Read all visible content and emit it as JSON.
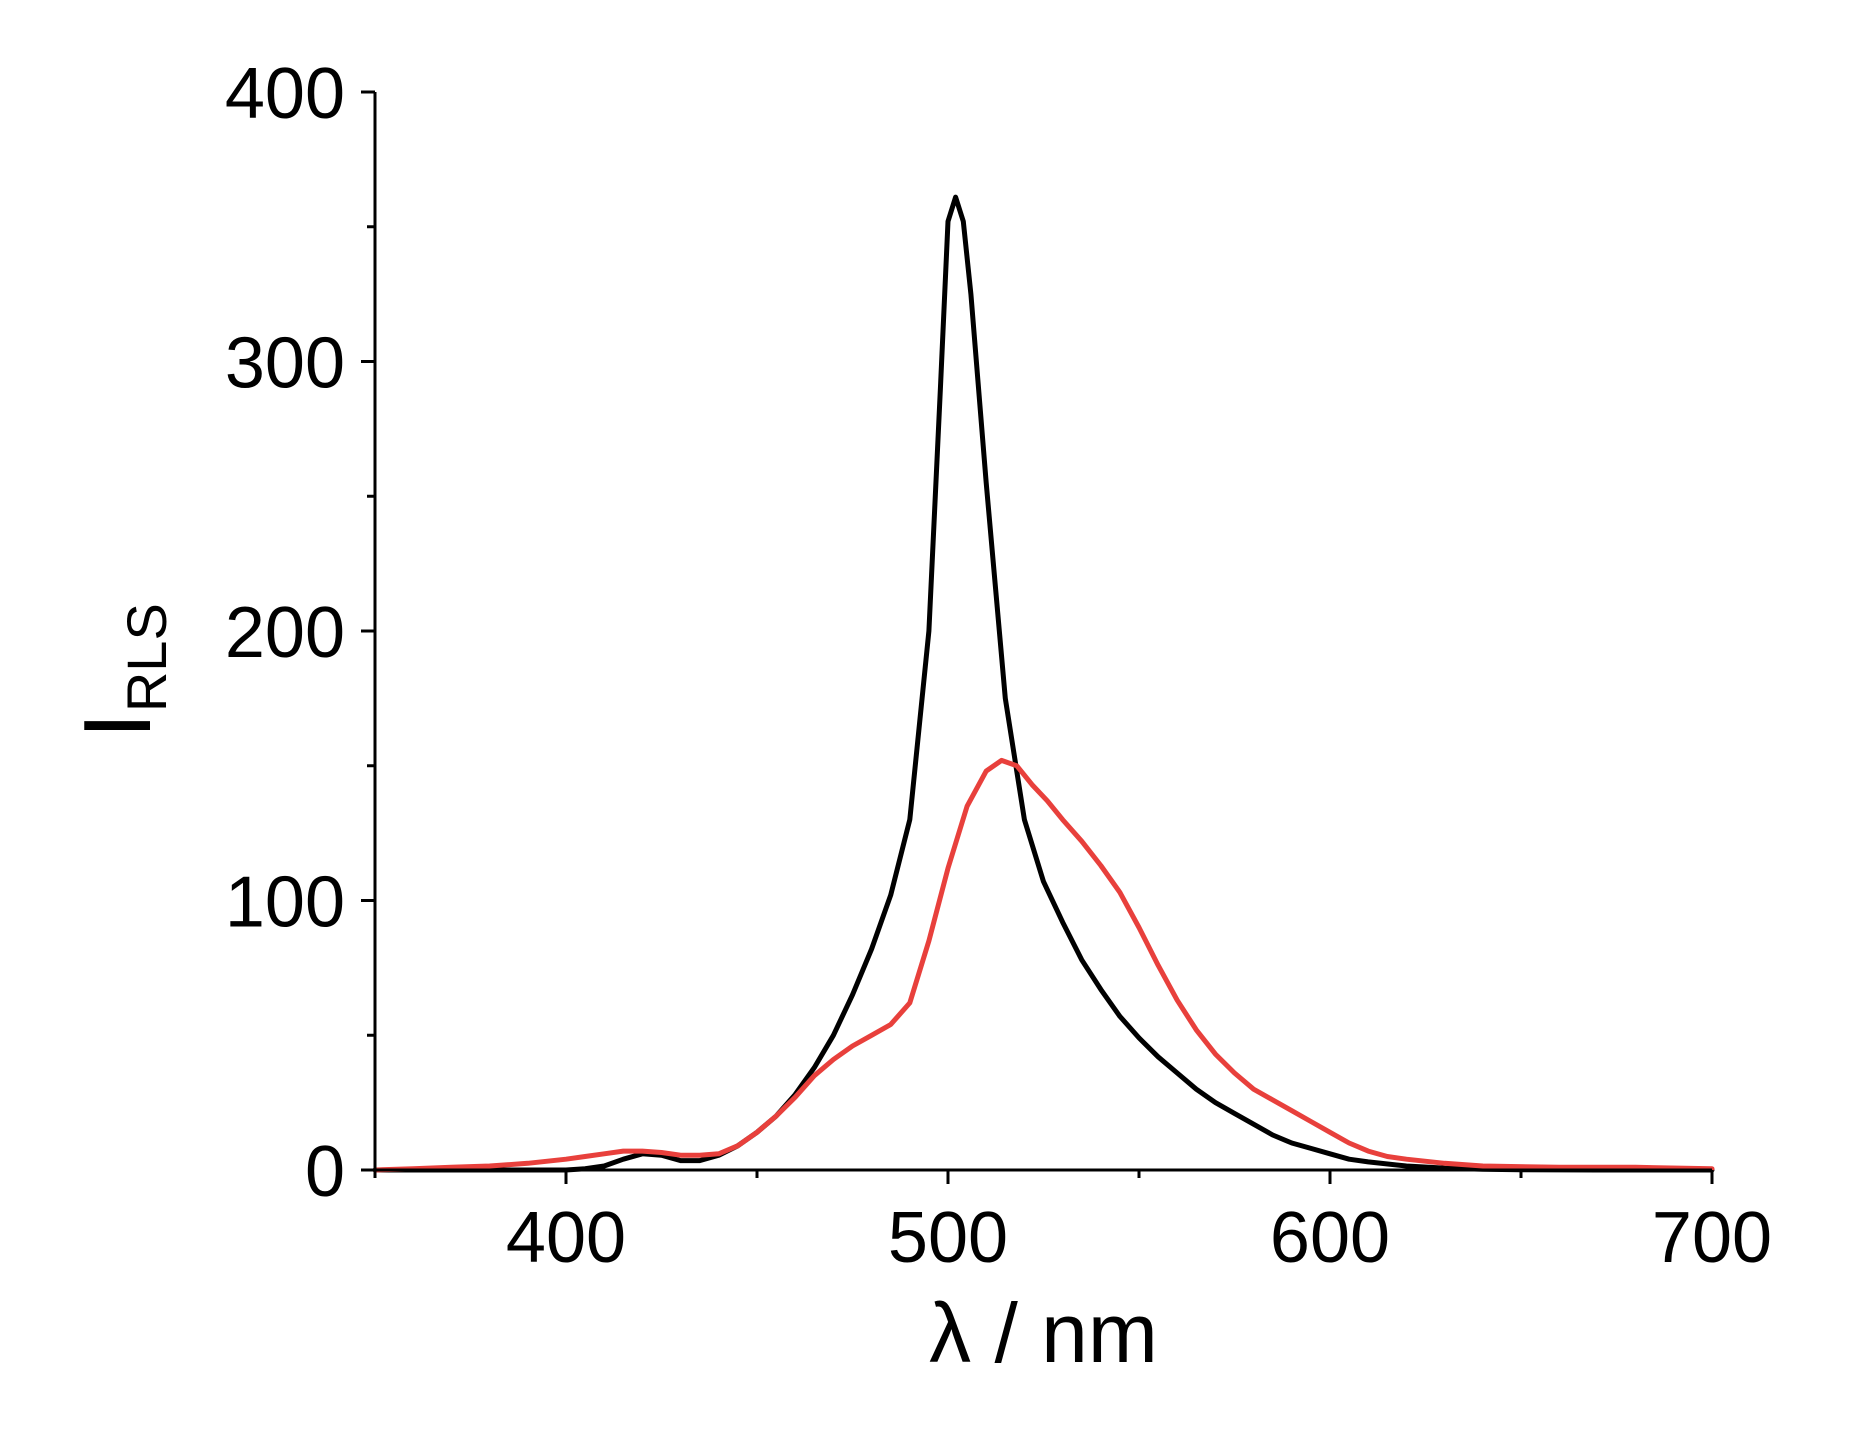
{
  "chart_data": {
    "type": "line",
    "title": "",
    "xlabel": "λ / nm",
    "ylabel": {
      "main": "I",
      "subscript": "RLS"
    },
    "xlim": [
      350,
      700
    ],
    "ylim": [
      0,
      400
    ],
    "x_ticks": [
      400,
      500,
      600,
      700
    ],
    "y_ticks": [
      0,
      100,
      200,
      300,
      400
    ],
    "x_ticks_labels": [
      "400",
      "500",
      "600",
      "700"
    ],
    "y_ticks_labels": [
      "0",
      "100",
      "200",
      "300",
      "400"
    ],
    "grid": false,
    "legend": "none",
    "series": [
      {
        "color": "#000000",
        "points": [
          [
            350,
            0
          ],
          [
            360,
            0
          ],
          [
            370,
            0
          ],
          [
            380,
            0
          ],
          [
            390,
            0
          ],
          [
            400,
            0
          ],
          [
            405,
            0.5
          ],
          [
            410,
            1.5
          ],
          [
            415,
            4
          ],
          [
            420,
            6
          ],
          [
            425,
            5.5
          ],
          [
            430,
            3.5
          ],
          [
            435,
            3.5
          ],
          [
            440,
            5.5
          ],
          [
            445,
            9
          ],
          [
            450,
            14
          ],
          [
            455,
            20
          ],
          [
            460,
            28
          ],
          [
            465,
            38
          ],
          [
            470,
            50
          ],
          [
            475,
            65
          ],
          [
            480,
            82
          ],
          [
            485,
            102
          ],
          [
            490,
            130
          ],
          [
            495,
            200
          ],
          [
            498,
            290
          ],
          [
            500,
            352
          ],
          [
            502,
            361
          ],
          [
            504,
            352
          ],
          [
            506,
            325
          ],
          [
            510,
            255
          ],
          [
            515,
            175
          ],
          [
            520,
            130
          ],
          [
            525,
            107
          ],
          [
            530,
            92
          ],
          [
            535,
            78
          ],
          [
            540,
            67
          ],
          [
            545,
            57
          ],
          [
            550,
            49
          ],
          [
            555,
            42
          ],
          [
            560,
            36
          ],
          [
            565,
            30
          ],
          [
            570,
            25
          ],
          [
            575,
            21
          ],
          [
            580,
            17
          ],
          [
            585,
            13
          ],
          [
            590,
            10
          ],
          [
            595,
            8
          ],
          [
            600,
            6
          ],
          [
            605,
            4
          ],
          [
            610,
            3
          ],
          [
            620,
            1.5
          ],
          [
            630,
            0.7
          ],
          [
            640,
            0.3
          ],
          [
            650,
            0.1
          ],
          [
            670,
            0
          ],
          [
            700,
            0
          ]
        ]
      },
      {
        "color": "#e8403c",
        "points": [
          [
            350,
            0
          ],
          [
            360,
            0.5
          ],
          [
            370,
            1
          ],
          [
            380,
            1.5
          ],
          [
            390,
            2.5
          ],
          [
            400,
            4
          ],
          [
            405,
            5
          ],
          [
            410,
            6
          ],
          [
            415,
            7
          ],
          [
            420,
            7
          ],
          [
            425,
            6.5
          ],
          [
            430,
            5.5
          ],
          [
            435,
            5.5
          ],
          [
            440,
            6
          ],
          [
            445,
            9
          ],
          [
            450,
            14
          ],
          [
            455,
            20
          ],
          [
            460,
            27
          ],
          [
            465,
            35
          ],
          [
            470,
            41
          ],
          [
            475,
            46
          ],
          [
            480,
            50
          ],
          [
            485,
            54
          ],
          [
            490,
            62
          ],
          [
            495,
            85
          ],
          [
            500,
            112
          ],
          [
            505,
            135
          ],
          [
            510,
            148
          ],
          [
            514,
            152
          ],
          [
            518,
            150
          ],
          [
            522,
            143
          ],
          [
            526,
            137
          ],
          [
            530,
            130
          ],
          [
            535,
            122
          ],
          [
            540,
            113
          ],
          [
            545,
            103
          ],
          [
            550,
            90
          ],
          [
            555,
            76
          ],
          [
            560,
            63
          ],
          [
            565,
            52
          ],
          [
            570,
            43
          ],
          [
            575,
            36
          ],
          [
            580,
            30
          ],
          [
            585,
            26
          ],
          [
            590,
            22
          ],
          [
            595,
            18
          ],
          [
            600,
            14
          ],
          [
            605,
            10
          ],
          [
            610,
            7
          ],
          [
            615,
            5
          ],
          [
            620,
            4
          ],
          [
            630,
            2.5
          ],
          [
            640,
            1.5
          ],
          [
            660,
            1
          ],
          [
            680,
            1
          ],
          [
            700,
            0.5
          ]
        ]
      }
    ]
  }
}
